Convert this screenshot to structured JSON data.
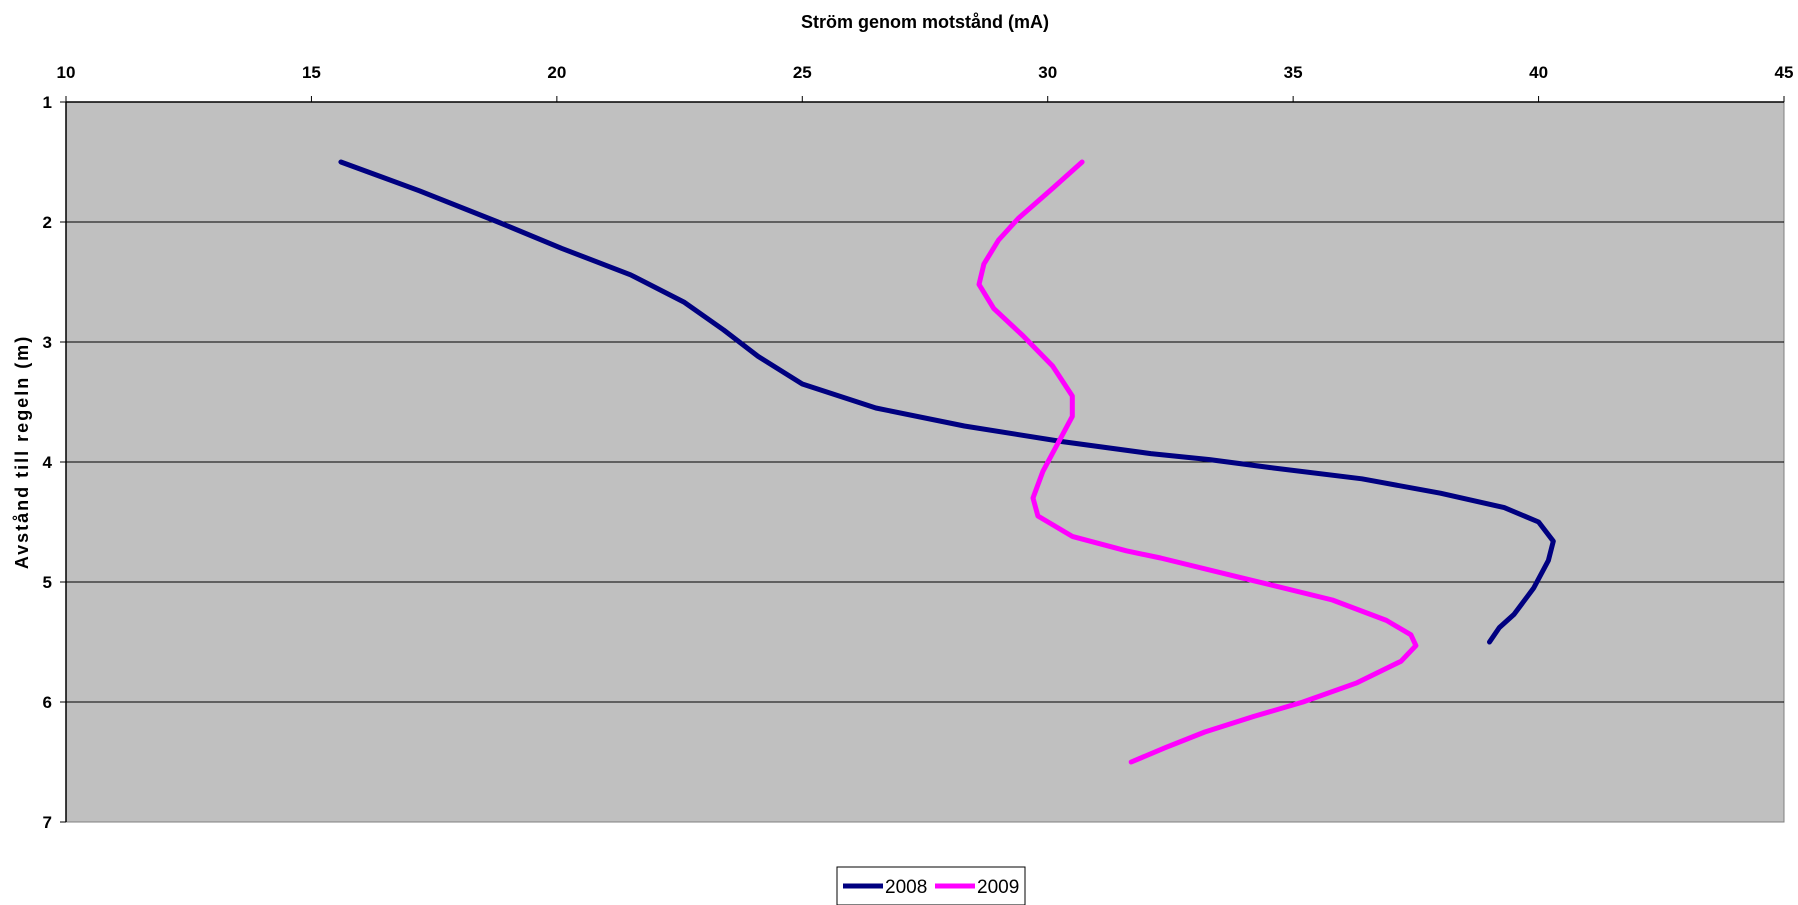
{
  "chart_data": {
    "type": "line",
    "title": "",
    "xlabel": "Ström genom motstånd (mA)",
    "ylabel": "Avstånd till regeln (m)",
    "x_axis_position": "top",
    "y_axis_reversed": true,
    "xlim": [
      10,
      45
    ],
    "ylim": [
      1,
      7
    ],
    "x_ticks": [
      "10",
      "15",
      "20",
      "25",
      "30",
      "35",
      "40",
      "45"
    ],
    "y_ticks": [
      "1",
      "2",
      "3",
      "4",
      "5",
      "6",
      "7"
    ],
    "grid": "horizontal",
    "plot_background": "#c0c0c0",
    "legend_position": "bottom-center",
    "series": [
      {
        "name": "2008",
        "color": "#000080",
        "points": [
          [
            15.6,
            1.5
          ],
          [
            17.2,
            1.74
          ],
          [
            18.8,
            2.0
          ],
          [
            20.1,
            2.22
          ],
          [
            21.5,
            2.44
          ],
          [
            22.6,
            2.67
          ],
          [
            23.4,
            2.9
          ],
          [
            24.1,
            3.12
          ],
          [
            25.0,
            3.35
          ],
          [
            26.5,
            3.55
          ],
          [
            28.3,
            3.7
          ],
          [
            30.3,
            3.83
          ],
          [
            32.1,
            3.93
          ],
          [
            33.3,
            3.98
          ],
          [
            34.6,
            4.05
          ],
          [
            36.4,
            4.14
          ],
          [
            38.0,
            4.26
          ],
          [
            39.3,
            4.38
          ],
          [
            40.0,
            4.5
          ],
          [
            40.3,
            4.66
          ],
          [
            40.2,
            4.82
          ],
          [
            39.9,
            5.05
          ],
          [
            39.5,
            5.27
          ],
          [
            39.2,
            5.38
          ],
          [
            39.0,
            5.5
          ]
        ]
      },
      {
        "name": "2009",
        "color": "#ff00ff",
        "points": [
          [
            30.7,
            1.5
          ],
          [
            30.1,
            1.72
          ],
          [
            29.4,
            1.97
          ],
          [
            29.0,
            2.15
          ],
          [
            28.7,
            2.35
          ],
          [
            28.6,
            2.52
          ],
          [
            28.9,
            2.72
          ],
          [
            29.5,
            2.95
          ],
          [
            30.1,
            3.2
          ],
          [
            30.5,
            3.45
          ],
          [
            30.5,
            3.62
          ],
          [
            30.2,
            3.85
          ],
          [
            29.9,
            4.08
          ],
          [
            29.7,
            4.3
          ],
          [
            29.8,
            4.45
          ],
          [
            30.5,
            4.62
          ],
          [
            31.6,
            4.74
          ],
          [
            32.3,
            4.8
          ],
          [
            34.0,
            4.97
          ],
          [
            35.8,
            5.15
          ],
          [
            36.9,
            5.32
          ],
          [
            37.4,
            5.44
          ],
          [
            37.5,
            5.53
          ],
          [
            37.2,
            5.66
          ],
          [
            36.3,
            5.84
          ],
          [
            35.2,
            6.0
          ],
          [
            34.2,
            6.12
          ],
          [
            33.2,
            6.25
          ],
          [
            32.4,
            6.38
          ],
          [
            31.7,
            6.5
          ]
        ]
      }
    ]
  }
}
